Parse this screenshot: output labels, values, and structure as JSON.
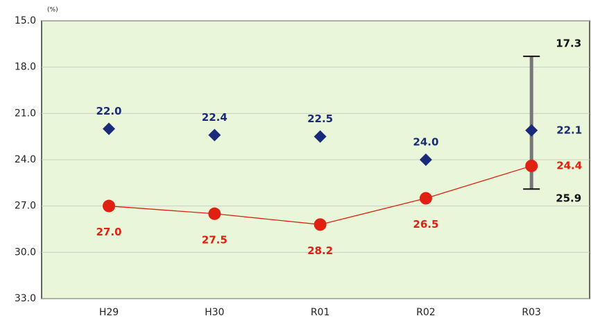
{
  "chart_data": {
    "type": "line",
    "unit": "(%)",
    "categories": [
      "H29",
      "H30",
      "R01",
      "R02",
      "R03"
    ],
    "ylim": [
      15,
      33
    ],
    "inverted": true,
    "grid": true,
    "yticks": [
      {
        "value": 15,
        "label": "15.0"
      },
      {
        "value": 18,
        "label": "18.0"
      },
      {
        "value": 21,
        "label": "21.0"
      },
      {
        "value": 24,
        "label": "24.0"
      },
      {
        "value": 27,
        "label": "27.0"
      },
      {
        "value": 30,
        "label": "30.0"
      },
      {
        "value": 33,
        "label": "33.0"
      }
    ],
    "series": [
      {
        "marker": "diamond",
        "line": false,
        "color": "#1a2a7a",
        "values": [
          22.0,
          22.4,
          22.5,
          24.0,
          22.1
        ],
        "value_labels": [
          "22.0",
          "22.4",
          "22.5",
          "24.0",
          "22.1"
        ]
      },
      {
        "marker": "circle",
        "line": true,
        "color": "#e02010",
        "values": [
          27.0,
          27.5,
          28.2,
          26.5,
          24.4
        ],
        "value_labels": [
          "27.0",
          "27.5",
          "28.2",
          "26.5",
          "24.4"
        ]
      }
    ],
    "range": {
      "category": "R03",
      "color": "#777777",
      "values": [
        17.3,
        25.9
      ],
      "value_labels": [
        "17.3",
        "25.9"
      ]
    }
  }
}
